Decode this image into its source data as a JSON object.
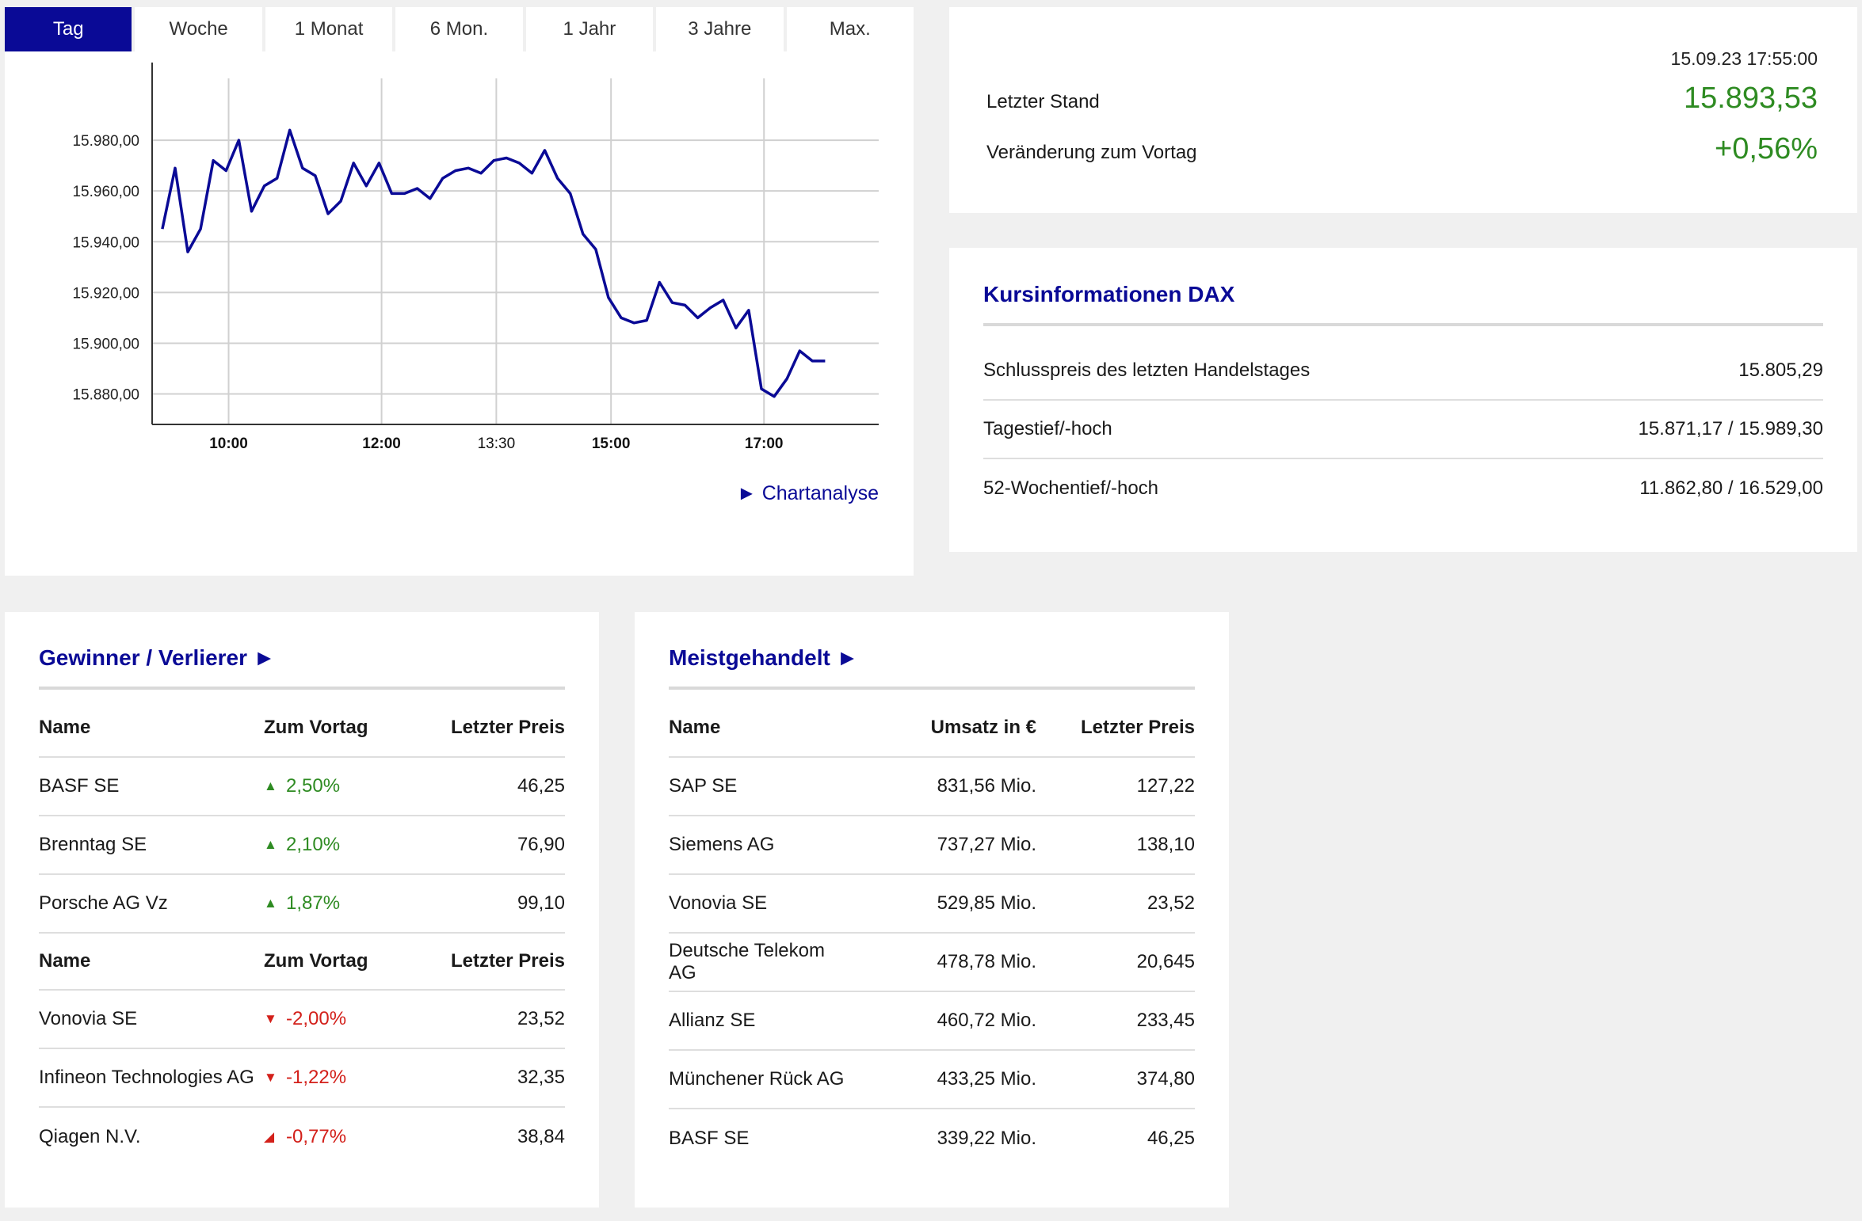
{
  "tabs": [
    "Tag",
    "Woche",
    "1 Monat",
    "6 Mon.",
    "1 Jahr",
    "3 Jahre",
    "Max."
  ],
  "active_tab": 0,
  "chart_link": "► Chartanalyse",
  "colors": {
    "accent": "#0a0a96",
    "positive": "#2e8b22",
    "negative": "#d3201a",
    "line": "#0a0a96"
  },
  "quote": {
    "timestamp": "15.09.23 17:55:00",
    "last_label": "Letzter Stand",
    "last_value": "15.893,53",
    "change_label": "Veränderung zum Vortag",
    "change_value": "+0,56%"
  },
  "info": {
    "title": "Kursinformationen DAX",
    "rows": [
      {
        "label": "Schlusspreis des letzten Handelstages",
        "value": "15.805,29"
      },
      {
        "label": "Tagestief/-hoch",
        "value": "15.871,17 / 15.989,30"
      },
      {
        "label": "52-Wochentief/-hoch",
        "value": "11.862,80 / 16.529,00"
      }
    ]
  },
  "gainers_losers": {
    "title": "Gewinner / Verlierer ►",
    "headers": [
      "Name",
      "Zum Vortag",
      "Letzter Preis"
    ],
    "gainers": [
      {
        "name": "BASF SE",
        "change": "2,50%",
        "price": "46,25"
      },
      {
        "name": "Brenntag SE",
        "change": "2,10%",
        "price": "76,90"
      },
      {
        "name": "Porsche AG Vz",
        "change": "1,87%",
        "price": "99,10"
      }
    ],
    "losers": [
      {
        "name": "Vonovia SE",
        "change": "-2,00%",
        "price": "23,52"
      },
      {
        "name": "Infineon Technologies AG",
        "change": "-1,22%",
        "price": "32,35"
      },
      {
        "name": "Qiagen N.V.",
        "change": "-0,77%",
        "price": "38,84"
      }
    ]
  },
  "most_traded": {
    "title": "Meistgehandelt ►",
    "headers": [
      "Name",
      "Umsatz in €",
      "Letzter Preis"
    ],
    "rows": [
      {
        "name": "SAP SE",
        "volume": "831,56 Mio.",
        "price": "127,22"
      },
      {
        "name": "Siemens AG",
        "volume": "737,27 Mio.",
        "price": "138,10"
      },
      {
        "name": "Vonovia SE",
        "volume": "529,85 Mio.",
        "price": "23,52"
      },
      {
        "name": "Deutsche Telekom AG",
        "volume": "478,78 Mio.",
        "price": "20,645"
      },
      {
        "name": "Allianz SE",
        "volume": "460,72 Mio.",
        "price": "233,45"
      },
      {
        "name": "Münchener Rück AG",
        "volume": "433,25 Mio.",
        "price": "374,80"
      },
      {
        "name": "BASF SE",
        "volume": "339,22 Mio.",
        "price": "46,25"
      }
    ]
  },
  "chart_data": {
    "type": "line",
    "x_ticks": [
      "10:00",
      "12:00",
      "13:30",
      "15:00",
      "17:00"
    ],
    "x_ticks_bold": [
      true,
      true,
      false,
      true,
      true
    ],
    "y_ticks": [
      "15.880,00",
      "15.900,00",
      "15.920,00",
      "15.940,00",
      "15.960,00",
      "15.980,00"
    ],
    "ylim": [
      15868,
      15995
    ],
    "x_range_minutes": [
      540,
      1110
    ],
    "grid": true,
    "series": [
      {
        "values": [
          [
            548,
            15945
          ],
          [
            558,
            15969
          ],
          [
            568,
            15936
          ],
          [
            578,
            15945
          ],
          [
            588,
            15972
          ],
          [
            598,
            15968
          ],
          [
            608,
            15980
          ],
          [
            618,
            15952
          ],
          [
            628,
            15962
          ],
          [
            638,
            15965
          ],
          [
            648,
            15984
          ],
          [
            658,
            15969
          ],
          [
            668,
            15966
          ],
          [
            678,
            15951
          ],
          [
            688,
            15956
          ],
          [
            698,
            15971
          ],
          [
            708,
            15962
          ],
          [
            718,
            15971
          ],
          [
            728,
            15959
          ],
          [
            738,
            15959
          ],
          [
            748,
            15961
          ],
          [
            758,
            15957
          ],
          [
            768,
            15965
          ],
          [
            778,
            15968
          ],
          [
            788,
            15969
          ],
          [
            798,
            15967
          ],
          [
            808,
            15972
          ],
          [
            818,
            15973
          ],
          [
            828,
            15971
          ],
          [
            838,
            15967
          ],
          [
            848,
            15976
          ],
          [
            858,
            15965
          ],
          [
            868,
            15959
          ],
          [
            878,
            15943
          ],
          [
            888,
            15937
          ],
          [
            898,
            15918
          ],
          [
            908,
            15910
          ],
          [
            918,
            15908
          ],
          [
            928,
            15909
          ],
          [
            938,
            15924
          ],
          [
            948,
            15916
          ],
          [
            958,
            15915
          ],
          [
            968,
            15910
          ],
          [
            978,
            15914
          ],
          [
            988,
            15917
          ],
          [
            998,
            15906
          ],
          [
            1008,
            15913
          ],
          [
            1018,
            15882
          ],
          [
            1028,
            15879
          ],
          [
            1038,
            15886
          ],
          [
            1048,
            15897
          ],
          [
            1058,
            15893
          ],
          [
            1068,
            15893
          ]
        ]
      }
    ]
  }
}
